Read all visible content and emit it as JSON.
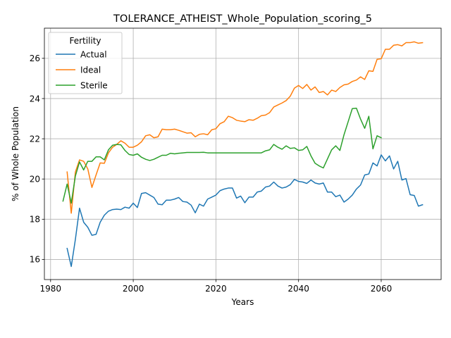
{
  "chart_data": {
    "type": "line",
    "title": "TOLERANCE_ATHEIST_Whole_Population_scoring_5",
    "xlabel": "Years",
    "ylabel": "% of Whole Population",
    "xlim": [
      1978.5,
      2074.5
    ],
    "ylim": [
      15.0,
      27.5
    ],
    "xticks": [
      1980,
      2000,
      2020,
      2040,
      2060
    ],
    "yticks": [
      16,
      18,
      20,
      22,
      24,
      26
    ],
    "grid": true,
    "legend": {
      "title": "Fertility",
      "position": "top-left"
    },
    "series": [
      {
        "name": "Actual",
        "color": "#1f77b4",
        "x": [
          1984,
          1985,
          1986,
          1987,
          1988,
          1989,
          1990,
          1991,
          1992,
          1993,
          1994,
          1995,
          1996,
          1997,
          1998,
          1999,
          2000,
          2001,
          2002,
          2003,
          2004,
          2005,
          2006,
          2007,
          2008,
          2009,
          2010,
          2011,
          2012,
          2013,
          2014,
          2015,
          2016,
          2017,
          2018,
          2019,
          2020,
          2021,
          2022,
          2023,
          2024,
          2025,
          2026,
          2027,
          2028,
          2029,
          2030,
          2031,
          2032,
          2033,
          2034,
          2035,
          2036,
          2037,
          2038,
          2039,
          2040,
          2041,
          2042,
          2043,
          2044,
          2045,
          2046,
          2047,
          2048,
          2049,
          2050,
          2051,
          2052,
          2053,
          2054,
          2055,
          2056,
          2057,
          2058,
          2059,
          2060,
          2061,
          2062,
          2063,
          2064,
          2065,
          2066,
          2067,
          2068,
          2069,
          2070
        ],
        "y": [
          16.55,
          15.65,
          17.0,
          18.55,
          17.85,
          17.6,
          17.2,
          17.25,
          17.85,
          18.2,
          18.4,
          18.48,
          18.5,
          18.48,
          18.6,
          18.55,
          18.8,
          18.58,
          19.28,
          19.32,
          19.2,
          19.08,
          18.75,
          18.72,
          18.95,
          18.95,
          19.0,
          19.08,
          18.88,
          18.85,
          18.7,
          18.32,
          18.75,
          18.65,
          19.0,
          19.1,
          19.2,
          19.42,
          19.5,
          19.55,
          19.55,
          19.05,
          19.15,
          18.82,
          19.1,
          19.1,
          19.35,
          19.4,
          19.6,
          19.65,
          19.85,
          19.65,
          19.55,
          19.6,
          19.72,
          19.98,
          19.88,
          19.85,
          19.78,
          19.95,
          19.8,
          19.75,
          19.8,
          19.35,
          19.35,
          19.12,
          19.2,
          18.85,
          19.0,
          19.2,
          19.5,
          19.7,
          20.2,
          20.25,
          20.8,
          20.65,
          21.2,
          20.9,
          21.15,
          20.5,
          20.88,
          19.95,
          20.02,
          19.22,
          19.18,
          18.65,
          18.72
        ]
      },
      {
        "name": "Ideal",
        "color": "#ff7f0e",
        "x": [
          1984,
          1985,
          1986,
          1987,
          1988,
          1989,
          1990,
          1991,
          1992,
          1993,
          1994,
          1995,
          1996,
          1997,
          1998,
          1999,
          2000,
          2001,
          2002,
          2003,
          2004,
          2005,
          2006,
          2007,
          2008,
          2009,
          2010,
          2011,
          2012,
          2013,
          2014,
          2015,
          2016,
          2017,
          2018,
          2019,
          2020,
          2021,
          2022,
          2023,
          2024,
          2025,
          2026,
          2027,
          2028,
          2029,
          2030,
          2031,
          2032,
          2033,
          2034,
          2035,
          2036,
          2037,
          2038,
          2039,
          2040,
          2041,
          2042,
          2043,
          2044,
          2045,
          2046,
          2047,
          2048,
          2049,
          2050,
          2051,
          2052,
          2053,
          2054,
          2055,
          2056,
          2057,
          2058,
          2059,
          2060,
          2061,
          2062,
          2063,
          2064,
          2065,
          2066,
          2067,
          2068,
          2069,
          2070
        ],
        "y": [
          20.35,
          18.3,
          20.35,
          20.95,
          20.88,
          20.5,
          19.58,
          20.2,
          20.8,
          20.78,
          21.3,
          21.58,
          21.72,
          21.9,
          21.78,
          21.58,
          21.58,
          21.68,
          21.85,
          22.15,
          22.2,
          22.05,
          22.1,
          22.48,
          22.45,
          22.45,
          22.48,
          22.42,
          22.35,
          22.28,
          22.3,
          22.1,
          22.22,
          22.25,
          22.2,
          22.45,
          22.5,
          22.75,
          22.85,
          23.12,
          23.05,
          22.92,
          22.88,
          22.85,
          22.95,
          22.92,
          23.02,
          23.15,
          23.18,
          23.3,
          23.58,
          23.68,
          23.78,
          23.9,
          24.12,
          24.52,
          24.65,
          24.5,
          24.7,
          24.42,
          24.58,
          24.3,
          24.35,
          24.18,
          24.42,
          24.35,
          24.55,
          24.68,
          24.72,
          24.85,
          24.92,
          25.08,
          24.95,
          25.38,
          25.35,
          25.95,
          25.98,
          26.45,
          26.45,
          26.65,
          26.68,
          26.62,
          26.78,
          26.78,
          26.82,
          26.75,
          26.78
        ]
      },
      {
        "name": "Sterile",
        "color": "#2ca02c",
        "x": [
          1983,
          1984,
          1985,
          1986,
          1987,
          1988,
          1989,
          1990,
          1991,
          1992,
          1993,
          1994,
          1995,
          1996,
          1997,
          1998,
          1999,
          2000,
          2001,
          2002,
          2003,
          2004,
          2005,
          2006,
          2007,
          2008,
          2009,
          2010,
          2011,
          2012,
          2013,
          2014,
          2015,
          2016,
          2017,
          2018,
          2019,
          2020,
          2021,
          2022,
          2023,
          2024,
          2025,
          2026,
          2027,
          2028,
          2029,
          2030,
          2031,
          2032,
          2033,
          2034,
          2035,
          2036,
          2037,
          2038,
          2039,
          2040,
          2041,
          2042,
          2043,
          2044,
          2045,
          2046,
          2047,
          2048,
          2049,
          2050,
          2051,
          2052,
          2053,
          2054,
          2055,
          2056,
          2057,
          2058,
          2059,
          2060
        ],
        "y": [
          18.9,
          19.75,
          18.8,
          20.15,
          20.85,
          20.45,
          20.88,
          20.88,
          21.1,
          21.1,
          20.95,
          21.45,
          21.68,
          21.72,
          21.7,
          21.42,
          21.22,
          21.18,
          21.25,
          21.08,
          20.98,
          20.92,
          20.98,
          21.08,
          21.18,
          21.18,
          21.28,
          21.25,
          21.28,
          21.3,
          21.32,
          21.32,
          21.32,
          21.32,
          21.33,
          21.3,
          21.3,
          21.3,
          21.3,
          21.3,
          21.3,
          21.3,
          21.3,
          21.3,
          21.3,
          21.3,
          21.3,
          21.3,
          21.3,
          21.4,
          21.45,
          21.72,
          21.58,
          21.48,
          21.65,
          21.52,
          21.55,
          21.42,
          21.45,
          21.62,
          21.15,
          20.78,
          20.65,
          20.55,
          21.0,
          21.45,
          21.65,
          21.42,
          22.2,
          22.85,
          23.5,
          23.52,
          22.98,
          22.52,
          23.12,
          21.5,
          22.15,
          22.05
        ]
      }
    ]
  }
}
